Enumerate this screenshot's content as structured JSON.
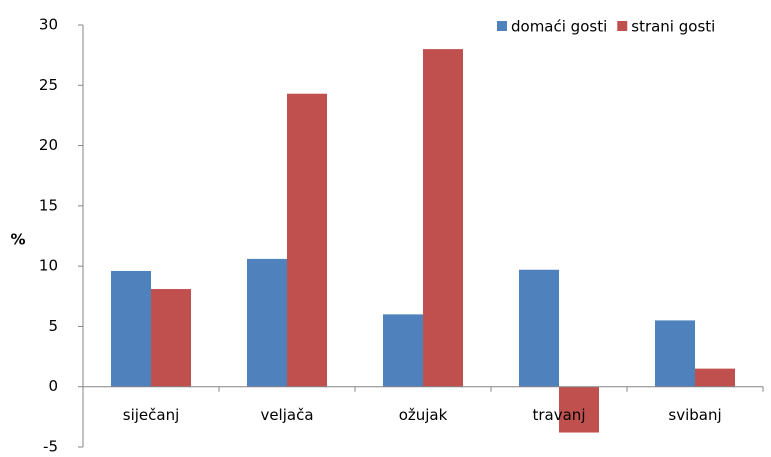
{
  "chart_data": {
    "type": "bar",
    "y_label": "%",
    "categories": [
      "siječanj",
      "veljača",
      "ožujak",
      "travanj",
      "svibanj"
    ],
    "series": [
      {
        "name": "domaći gosti",
        "color": "#4f81bd",
        "values": [
          9.6,
          10.6,
          6.0,
          9.7,
          5.5
        ]
      },
      {
        "name": "strani gosti",
        "color": "#c0504d",
        "values": [
          8.1,
          24.3,
          28.0,
          -3.8,
          1.5
        ]
      }
    ],
    "ylim": [
      -5,
      30
    ],
    "yticks": [
      -5,
      0,
      5,
      10,
      15,
      20,
      25,
      30
    ],
    "grid": false,
    "legend": "top-right"
  }
}
